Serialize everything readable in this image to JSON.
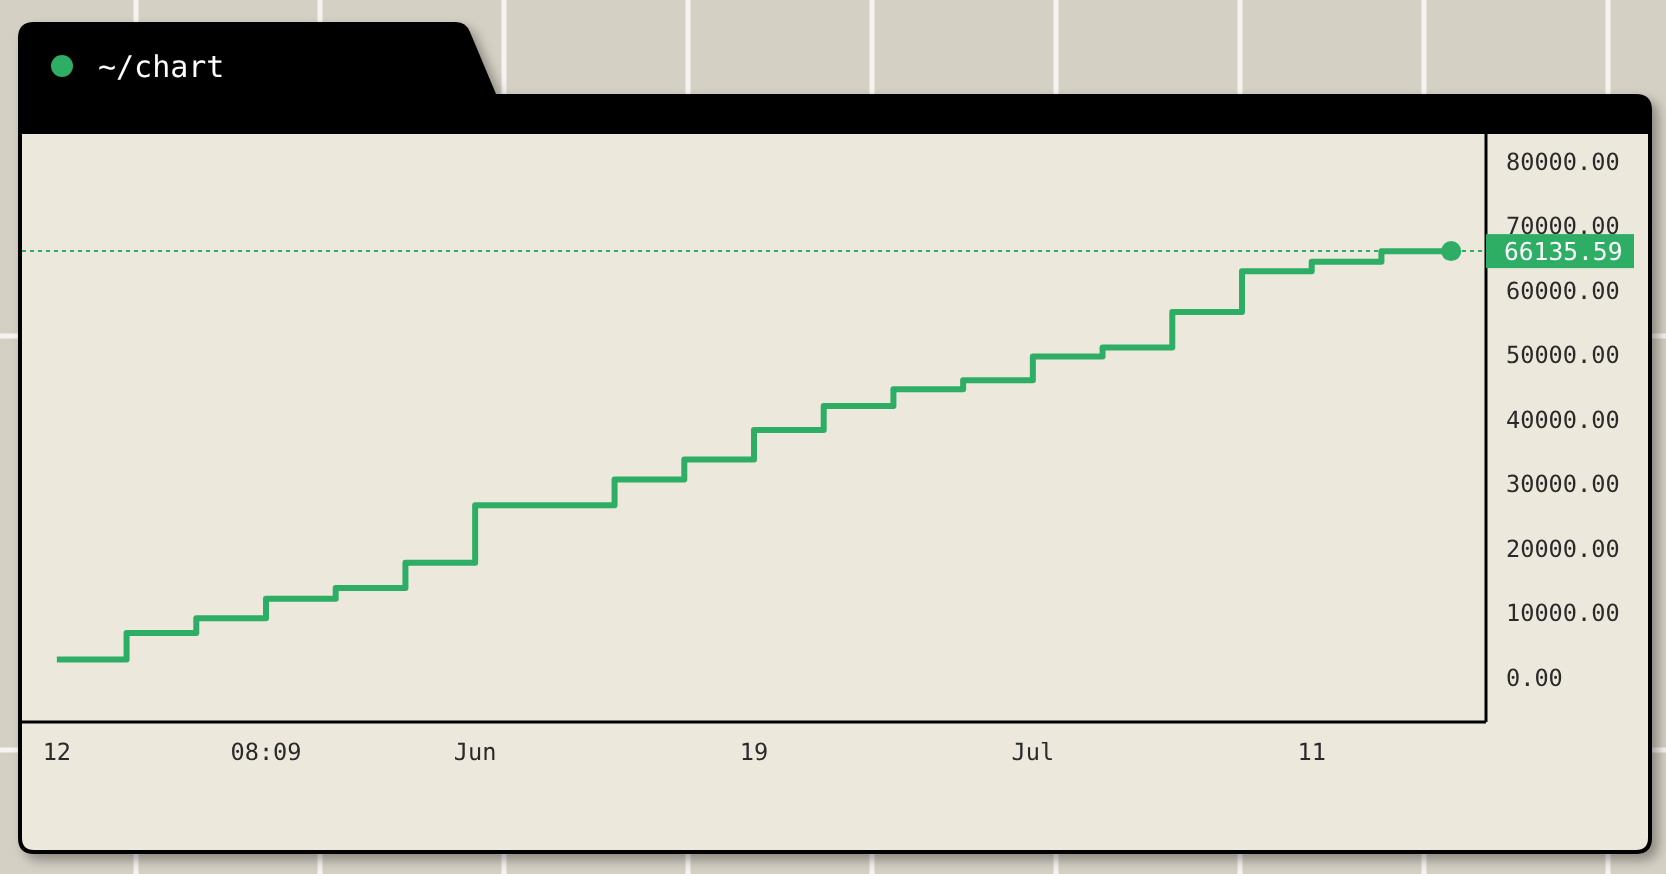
{
  "chart_data": {
    "type": "step",
    "title": "~/chart",
    "categories": [
      "12",
      null,
      null,
      "08:09",
      null,
      null,
      "Jun",
      null,
      null,
      null,
      "19",
      null,
      null,
      null,
      "Jul",
      null,
      null,
      null,
      "11",
      null,
      null
    ],
    "series": [
      {
        "color": "#2ead65",
        "values": [
          2800,
          6900,
          9200,
          12200,
          13900,
          17800,
          26700,
          26700,
          30700,
          33800,
          38400,
          42100,
          44700,
          46100,
          49800,
          51200,
          56700,
          63000,
          64500,
          66100,
          66135.59
        ]
      },
      {
        "type": "scatter",
        "color": "#2ead65",
        "values": [
          null,
          null,
          null,
          null,
          null,
          null,
          null,
          null,
          null,
          null,
          null,
          null,
          null,
          null,
          null,
          null,
          null,
          null,
          null,
          null,
          66135.59
        ]
      }
    ],
    "ylim": [
      -6900,
      84300
    ],
    "yticks": [
      {
        "value": 0,
        "label": "0.00"
      },
      {
        "value": 10000,
        "label": "10000.00"
      },
      {
        "value": 20000,
        "label": "20000.00"
      },
      {
        "value": 30000,
        "label": "30000.00"
      },
      {
        "value": 40000,
        "label": "40000.00"
      },
      {
        "value": 50000,
        "label": "50000.00"
      },
      {
        "value": 60000,
        "label": "60000.00"
      },
      {
        "value": 70000,
        "label": "70000.00"
      },
      {
        "value": 80000,
        "label": "80000.00"
      }
    ],
    "ref_lines": [
      {
        "axis": "y",
        "value": 66135.59,
        "label": "66135.59",
        "color": "#2ead65",
        "line_style": "dotted"
      }
    ]
  }
}
